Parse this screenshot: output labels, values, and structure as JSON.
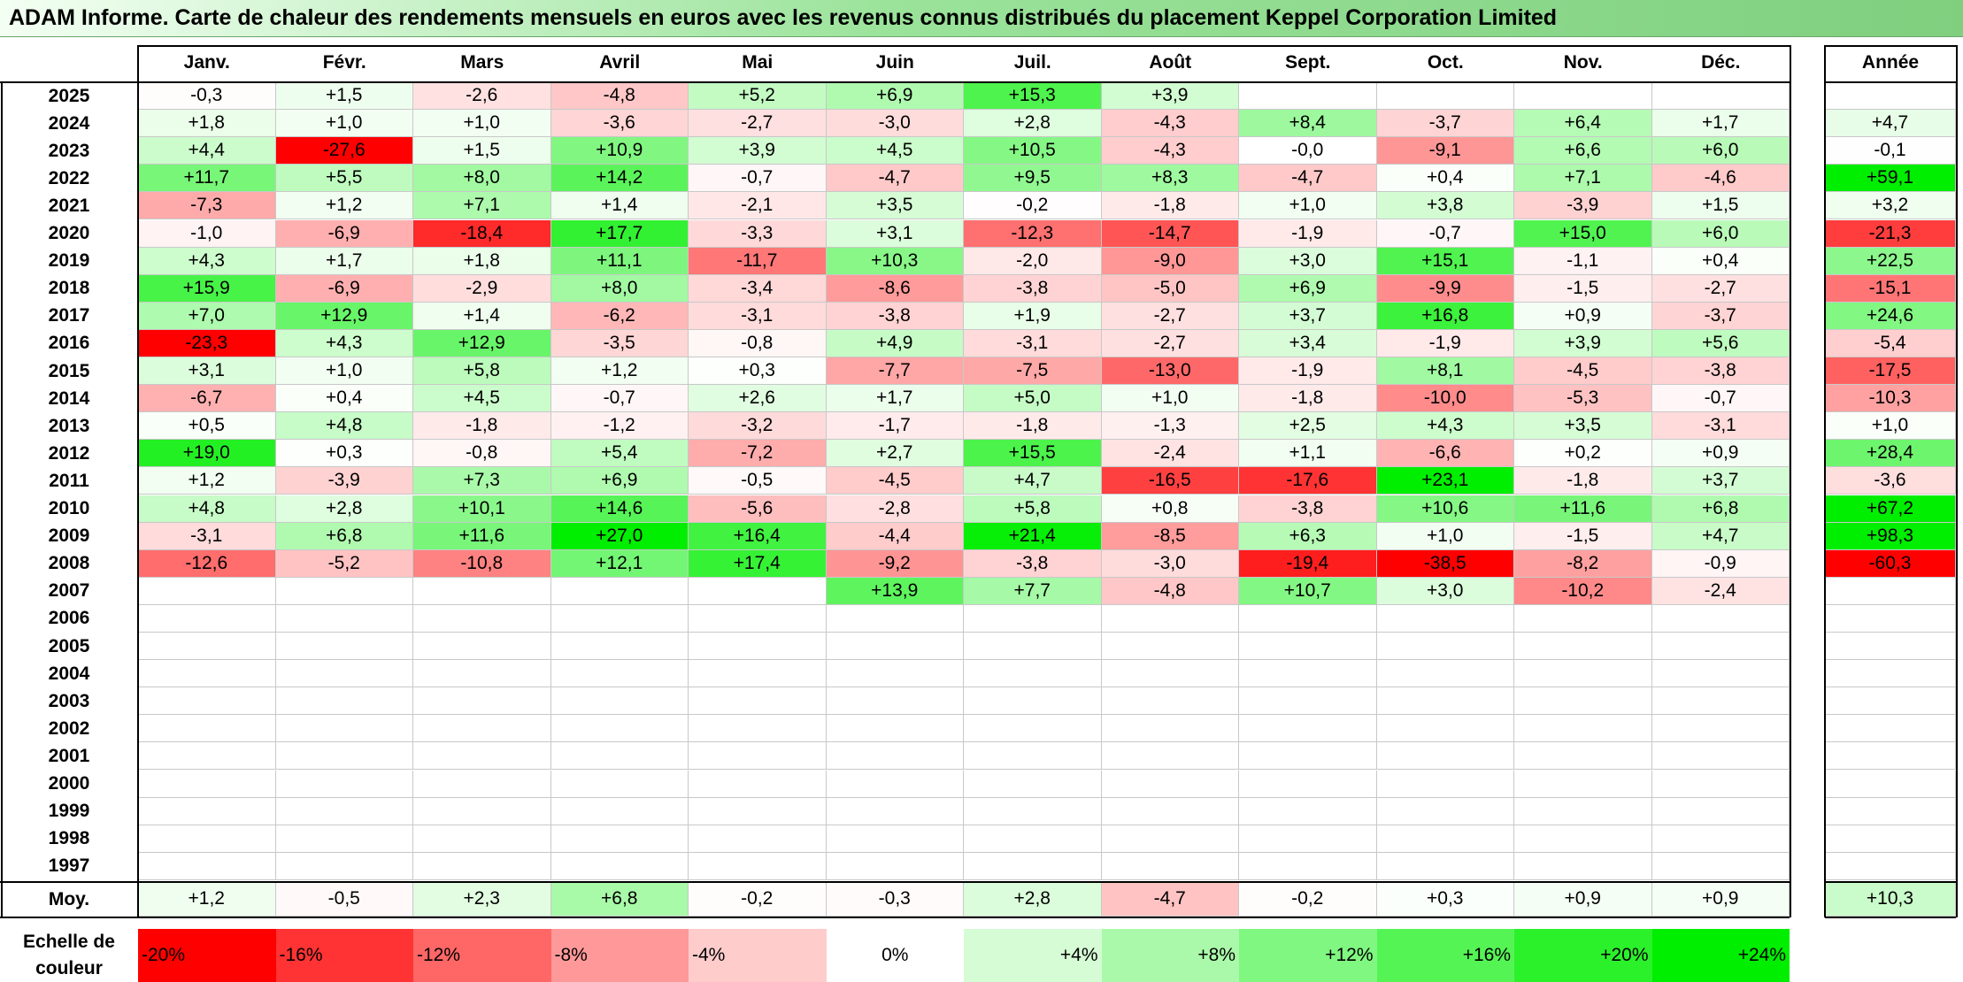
{
  "title": "ADAM Informe. Carte de chaleur des rendements mensuels en euros avec les revenus connus distribués du placement Keppel Corporation Limited",
  "chart_data": {
    "type": "heatmap",
    "columns": [
      "Janv.",
      "Févr.",
      "Mars",
      "Avril",
      "Mai",
      "Juin",
      "Juil.",
      "Août",
      "Sept.",
      "Oct.",
      "Nov.",
      "Déc."
    ],
    "annual_header": "Année",
    "rows": [
      {
        "year": "2025",
        "values": [
          "-0,3",
          "+1,5",
          "-2,6",
          "-4,8",
          "+5,2",
          "+6,9",
          "+15,3",
          "+3,9",
          "",
          "",
          "",
          ""
        ],
        "annual": ""
      },
      {
        "year": "2024",
        "values": [
          "+1,8",
          "+1,0",
          "+1,0",
          "-3,6",
          "-2,7",
          "-3,0",
          "+2,8",
          "-4,3",
          "+8,4",
          "-3,7",
          "+6,4",
          "+1,7"
        ],
        "annual": "+4,7"
      },
      {
        "year": "2023",
        "values": [
          "+4,4",
          "-27,6",
          "+1,5",
          "+10,9",
          "+3,9",
          "+4,5",
          "+10,5",
          "-4,3",
          "-0,0",
          "-9,1",
          "+6,6",
          "+6,0"
        ],
        "annual": "-0,1"
      },
      {
        "year": "2022",
        "values": [
          "+11,7",
          "+5,5",
          "+8,0",
          "+14,2",
          "-0,7",
          "-4,7",
          "+9,5",
          "+8,3",
          "-4,7",
          "+0,4",
          "+7,1",
          "-4,6"
        ],
        "annual": "+59,1"
      },
      {
        "year": "2021",
        "values": [
          "-7,3",
          "+1,2",
          "+7,1",
          "+1,4",
          "-2,1",
          "+3,5",
          "-0,2",
          "-1,8",
          "+1,0",
          "+3,8",
          "-3,9",
          "+1,5"
        ],
        "annual": "+3,2"
      },
      {
        "year": "2020",
        "values": [
          "-1,0",
          "-6,9",
          "-18,4",
          "+17,7",
          "-3,3",
          "+3,1",
          "-12,3",
          "-14,7",
          "-1,9",
          "-0,7",
          "+15,0",
          "+6,0"
        ],
        "annual": "-21,3"
      },
      {
        "year": "2019",
        "values": [
          "+4,3",
          "+1,7",
          "+1,8",
          "+11,1",
          "-11,7",
          "+10,3",
          "-2,0",
          "-9,0",
          "+3,0",
          "+15,1",
          "-1,1",
          "+0,4"
        ],
        "annual": "+22,5"
      },
      {
        "year": "2018",
        "values": [
          "+15,9",
          "-6,9",
          "-2,9",
          "+8,0",
          "-3,4",
          "-8,6",
          "-3,8",
          "-5,0",
          "+6,9",
          "-9,9",
          "-1,5",
          "-2,7"
        ],
        "annual": "-15,1"
      },
      {
        "year": "2017",
        "values": [
          "+7,0",
          "+12,9",
          "+1,4",
          "-6,2",
          "-3,1",
          "-3,8",
          "+1,9",
          "-2,7",
          "+3,7",
          "+16,8",
          "+0,9",
          "-3,7"
        ],
        "annual": "+24,6"
      },
      {
        "year": "2016",
        "values": [
          "-23,3",
          "+4,3",
          "+12,9",
          "-3,5",
          "-0,8",
          "+4,9",
          "-3,1",
          "-2,7",
          "+3,4",
          "-1,9",
          "+3,9",
          "+5,6"
        ],
        "annual": "-5,4"
      },
      {
        "year": "2015",
        "values": [
          "+3,1",
          "+1,0",
          "+5,8",
          "+1,2",
          "+0,3",
          "-7,7",
          "-7,5",
          "-13,0",
          "-1,9",
          "+8,1",
          "-4,5",
          "-3,8"
        ],
        "annual": "-17,5"
      },
      {
        "year": "2014",
        "values": [
          "-6,7",
          "+0,4",
          "+4,5",
          "-0,7",
          "+2,6",
          "+1,7",
          "+5,0",
          "+1,0",
          "-1,8",
          "-10,0",
          "-5,3",
          "-0,7"
        ],
        "annual": "-10,3"
      },
      {
        "year": "2013",
        "values": [
          "+0,5",
          "+4,8",
          "-1,8",
          "-1,2",
          "-3,2",
          "-1,7",
          "-1,8",
          "-1,3",
          "+2,5",
          "+4,3",
          "+3,5",
          "-3,1"
        ],
        "annual": "+1,0"
      },
      {
        "year": "2012",
        "values": [
          "+19,0",
          "+0,3",
          "-0,8",
          "+5,4",
          "-7,2",
          "+2,7",
          "+15,5",
          "-2,4",
          "+1,1",
          "-6,6",
          "+0,2",
          "+0,9"
        ],
        "annual": "+28,4"
      },
      {
        "year": "2011",
        "values": [
          "+1,2",
          "-3,9",
          "+7,3",
          "+6,9",
          "-0,5",
          "-4,5",
          "+4,7",
          "-16,5",
          "-17,6",
          "+23,1",
          "-1,8",
          "+3,7"
        ],
        "annual": "-3,6"
      },
      {
        "year": "2010",
        "values": [
          "+4,8",
          "+2,8",
          "+10,1",
          "+14,6",
          "-5,6",
          "-2,8",
          "+5,8",
          "+0,8",
          "-3,8",
          "+10,6",
          "+11,6",
          "+6,8"
        ],
        "annual": "+67,2"
      },
      {
        "year": "2009",
        "values": [
          "-3,1",
          "+6,8",
          "+11,6",
          "+27,0",
          "+16,4",
          "-4,4",
          "+21,4",
          "-8,5",
          "+6,3",
          "+1,0",
          "-1,5",
          "+4,7"
        ],
        "annual": "+98,3"
      },
      {
        "year": "2008",
        "values": [
          "-12,6",
          "-5,2",
          "-10,8",
          "+12,1",
          "+17,4",
          "-9,2",
          "-3,8",
          "-3,0",
          "-19,4",
          "-38,5",
          "-8,2",
          "-0,9"
        ],
        "annual": "-60,3"
      },
      {
        "year": "2007",
        "values": [
          "",
          "",
          "",
          "",
          "",
          "+13,9",
          "+7,7",
          "-4,8",
          "+10,7",
          "+3,0",
          "-10,2",
          "-2,4"
        ],
        "annual": ""
      },
      {
        "year": "2006",
        "values": [
          "",
          "",
          "",
          "",
          "",
          "",
          "",
          "",
          "",
          "",
          "",
          ""
        ],
        "annual": ""
      },
      {
        "year": "2005",
        "values": [
          "",
          "",
          "",
          "",
          "",
          "",
          "",
          "",
          "",
          "",
          "",
          ""
        ],
        "annual": ""
      },
      {
        "year": "2004",
        "values": [
          "",
          "",
          "",
          "",
          "",
          "",
          "",
          "",
          "",
          "",
          "",
          ""
        ],
        "annual": ""
      },
      {
        "year": "2003",
        "values": [
          "",
          "",
          "",
          "",
          "",
          "",
          "",
          "",
          "",
          "",
          "",
          ""
        ],
        "annual": ""
      },
      {
        "year": "2002",
        "values": [
          "",
          "",
          "",
          "",
          "",
          "",
          "",
          "",
          "",
          "",
          "",
          ""
        ],
        "annual": ""
      },
      {
        "year": "2001",
        "values": [
          "",
          "",
          "",
          "",
          "",
          "",
          "",
          "",
          "",
          "",
          "",
          ""
        ],
        "annual": ""
      },
      {
        "year": "2000",
        "values": [
          "",
          "",
          "",
          "",
          "",
          "",
          "",
          "",
          "",
          "",
          "",
          ""
        ],
        "annual": ""
      },
      {
        "year": "1999",
        "values": [
          "",
          "",
          "",
          "",
          "",
          "",
          "",
          "",
          "",
          "",
          "",
          ""
        ],
        "annual": ""
      },
      {
        "year": "1998",
        "values": [
          "",
          "",
          "",
          "",
          "",
          "",
          "",
          "",
          "",
          "",
          "",
          ""
        ],
        "annual": ""
      },
      {
        "year": "1997",
        "values": [
          "",
          "",
          "",
          "",
          "",
          "",
          "",
          "",
          "",
          "",
          "",
          ""
        ],
        "annual": ""
      }
    ],
    "average": {
      "label": "Moy.",
      "values": [
        "+1,2",
        "-0,5",
        "+2,3",
        "+6,8",
        "-0,2",
        "-0,3",
        "+2,8",
        "-4,7",
        "-0,2",
        "+0,3",
        "+0,9",
        "+0,9"
      ],
      "annual": "+10,3"
    },
    "color_scale": {
      "label": "Echelle de couleur",
      "stops": [
        "-20%",
        "-16%",
        "-12%",
        "-8%",
        "-4%",
        "0%",
        "+4%",
        "+8%",
        "+12%",
        "+16%",
        "+20%",
        "+24%"
      ]
    },
    "colors": {
      "negative_max": "#ff0000",
      "neutral": "#ffffff",
      "positive_max": "#00ee00"
    }
  }
}
